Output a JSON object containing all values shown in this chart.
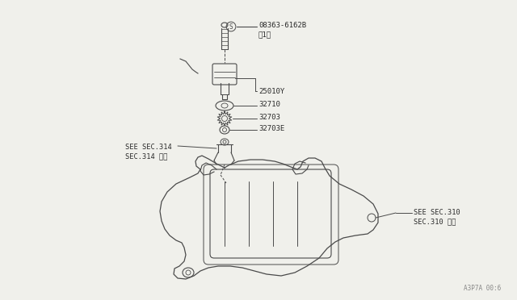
{
  "bg_color": "#f0f0eb",
  "line_color": "#4a4a4a",
  "text_color": "#2a2a2a",
  "watermark": "A3P7A 00:6",
  "labels": {
    "screw": "08363-6162B\n（1）",
    "sensor": "25010Y",
    "ring1": "32710",
    "gear": "32703",
    "ring2": "32703E",
    "sec314": "SEE SEC.314\nSEC.314 参照",
    "sec310": "SEE SEC.310\nSEC.310 参照"
  }
}
